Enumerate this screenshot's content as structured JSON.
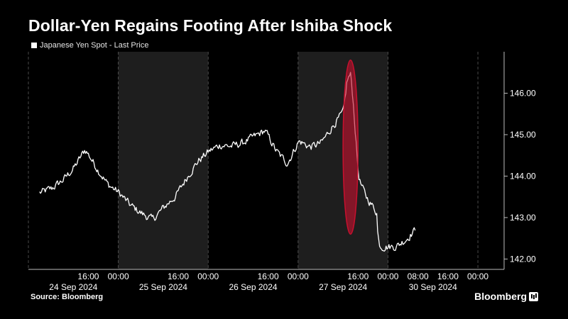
{
  "title": "Dollar-Yen Regains Footing After Ishiba Shock",
  "source": "Source: Bloomberg",
  "brand": "Bloomberg",
  "colors": {
    "background": "#000000",
    "line": "#ffffff",
    "shade": "#1e1e1e",
    "highlight": "#c8102e"
  },
  "chart_data": {
    "type": "line",
    "series": [
      {
        "name": "Japanese Yen Spot - Last Price",
        "x": [
          "2024-09-24 03:00",
          "2024-09-24 06:00",
          "2024-09-24 09:00",
          "2024-09-24 12:00",
          "2024-09-24 15:00",
          "2024-09-24 18:00",
          "2024-09-24 21:00",
          "2024-09-25 00:00",
          "2024-09-25 03:00",
          "2024-09-25 06:00",
          "2024-09-25 09:00",
          "2024-09-25 12:00",
          "2024-09-25 15:00",
          "2024-09-25 18:00",
          "2024-09-25 21:00",
          "2024-09-26 00:00",
          "2024-09-26 03:00",
          "2024-09-26 06:00",
          "2024-09-26 09:00",
          "2024-09-26 12:00",
          "2024-09-26 15:00",
          "2024-09-26 18:00",
          "2024-09-26 21:00",
          "2024-09-27 00:00",
          "2024-09-27 03:00",
          "2024-09-27 06:00",
          "2024-09-27 09:00",
          "2024-09-27 12:00",
          "2024-09-27 13:00",
          "2024-09-27 14:00",
          "2024-09-27 16:00",
          "2024-09-27 18:00",
          "2024-09-27 21:00",
          "2024-09-28 00:00",
          "2024-09-28 04:00",
          "2024-09-30 02:00",
          "2024-09-30 05:00",
          "2024-09-30 08:00"
        ],
        "values": [
          143.6,
          143.7,
          143.9,
          144.2,
          144.65,
          144.2,
          143.8,
          143.6,
          143.3,
          143.1,
          142.95,
          143.25,
          143.5,
          143.95,
          144.35,
          144.6,
          144.75,
          144.72,
          144.8,
          144.95,
          145.1,
          144.6,
          144.3,
          144.85,
          144.7,
          144.8,
          145.2,
          145.55,
          146.4,
          146.45,
          143.9,
          143.5,
          143.1,
          142.6,
          142.2,
          142.3,
          142.5,
          142.8
        ]
      }
    ],
    "ylim": [
      141.75,
      147.0
    ],
    "yticks": [
      "146.00",
      "145.00",
      "144.00",
      "143.00",
      "142.00"
    ],
    "xtick_times": [
      "16:00",
      "00:00",
      "16:00",
      "00:00",
      "16:00",
      "00:00",
      "16:00",
      "00:00",
      "08:00",
      "16:00",
      "00:00"
    ],
    "xtick_dates": [
      "24 Sep 2024",
      "25 Sep 2024",
      "26 Sep 2024",
      "27 Sep 2024",
      "30 Sep 2024"
    ],
    "annotation": {
      "type": "ellipse",
      "x_range": [
        "2024-09-27 12:00",
        "2024-09-27 16:00"
      ],
      "y_range": [
        142.6,
        146.8
      ]
    },
    "grid": true,
    "legend": "top-left"
  }
}
